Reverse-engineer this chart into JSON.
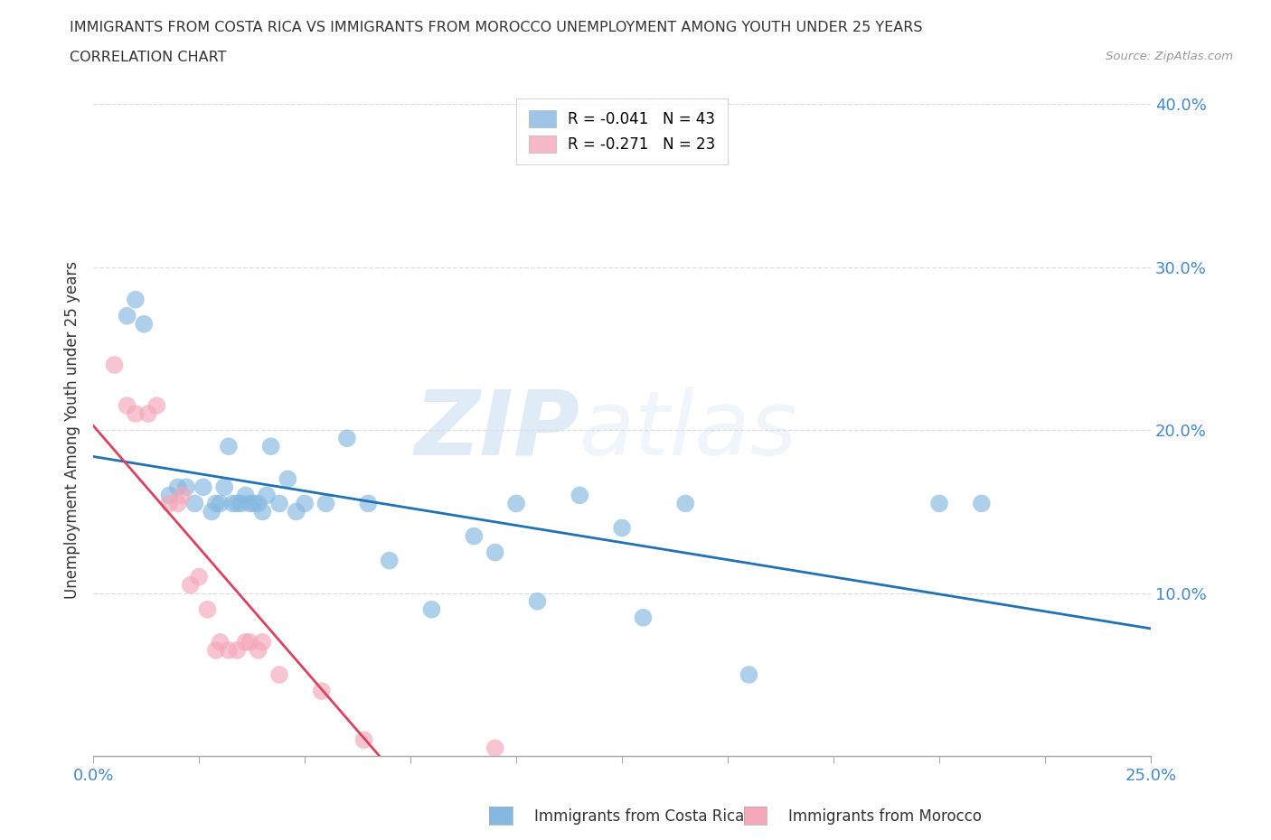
{
  "title_line1": "IMMIGRANTS FROM COSTA RICA VS IMMIGRANTS FROM MOROCCO UNEMPLOYMENT AMONG YOUTH UNDER 25 YEARS",
  "title_line2": "CORRELATION CHART",
  "source": "Source: ZipAtlas.com",
  "ylabel": "Unemployment Among Youth under 25 years",
  "xlim": [
    0.0,
    0.25
  ],
  "ylim": [
    0.0,
    0.4
  ],
  "xticks": [
    0.0,
    0.025,
    0.05,
    0.075,
    0.1,
    0.125,
    0.15,
    0.175,
    0.2,
    0.225,
    0.25
  ],
  "yticks": [
    0.0,
    0.1,
    0.2,
    0.3,
    0.4
  ],
  "legend_entry1": "R = -0.041   N = 43",
  "legend_entry2": "R = -0.271   N = 23",
  "blue_color": "#85b8e0",
  "pink_color": "#f4a7b9",
  "blue_line_color": "#2171b5",
  "pink_line_color": "#d9435e",
  "pink_dash_color": "#f4a7b9",
  "watermark_zip": "ZIP",
  "watermark_atlas": "atlas",
  "costa_rica_x": [
    0.008,
    0.01,
    0.012,
    0.018,
    0.02,
    0.022,
    0.024,
    0.026,
    0.028,
    0.029,
    0.03,
    0.031,
    0.032,
    0.033,
    0.034,
    0.035,
    0.036,
    0.037,
    0.038,
    0.039,
    0.04,
    0.041,
    0.042,
    0.044,
    0.046,
    0.048,
    0.05,
    0.055,
    0.06,
    0.065,
    0.07,
    0.08,
    0.09,
    0.095,
    0.1,
    0.105,
    0.115,
    0.125,
    0.13,
    0.14,
    0.155,
    0.2,
    0.21
  ],
  "costa_rica_y": [
    0.27,
    0.28,
    0.265,
    0.16,
    0.165,
    0.165,
    0.155,
    0.165,
    0.15,
    0.155,
    0.155,
    0.165,
    0.19,
    0.155,
    0.155,
    0.155,
    0.16,
    0.155,
    0.155,
    0.155,
    0.15,
    0.16,
    0.19,
    0.155,
    0.17,
    0.15,
    0.155,
    0.155,
    0.195,
    0.155,
    0.12,
    0.09,
    0.135,
    0.125,
    0.155,
    0.095,
    0.16,
    0.14,
    0.085,
    0.155,
    0.05,
    0.155,
    0.155
  ],
  "morocco_x": [
    0.005,
    0.008,
    0.01,
    0.013,
    0.015,
    0.018,
    0.02,
    0.021,
    0.023,
    0.025,
    0.027,
    0.029,
    0.03,
    0.032,
    0.034,
    0.036,
    0.037,
    0.039,
    0.04,
    0.044,
    0.054,
    0.064,
    0.095
  ],
  "morocco_y": [
    0.24,
    0.215,
    0.21,
    0.21,
    0.215,
    0.155,
    0.155,
    0.16,
    0.105,
    0.11,
    0.09,
    0.065,
    0.07,
    0.065,
    0.065,
    0.07,
    0.07,
    0.065,
    0.07,
    0.05,
    0.04,
    0.01,
    0.005
  ]
}
